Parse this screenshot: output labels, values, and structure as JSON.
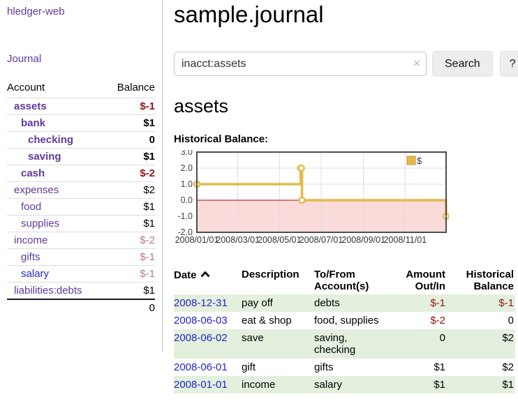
{
  "app": {
    "title": "hledger-web"
  },
  "nav": {
    "journal_label": "Journal"
  },
  "sidebar": {
    "columns": {
      "account": "Account",
      "balance": "Balance"
    },
    "accounts": [
      {
        "name": "assets",
        "indent": 0,
        "bold": true,
        "balance": "$-1",
        "balance_style": "neg"
      },
      {
        "name": "bank",
        "indent": 1,
        "bold": true,
        "balance": "$1",
        "balance_style": "pos"
      },
      {
        "name": "checking",
        "indent": 2,
        "bold": true,
        "balance": "0",
        "balance_style": "pos"
      },
      {
        "name": "saving",
        "indent": 2,
        "bold": true,
        "balance": "$1",
        "balance_style": "pos"
      },
      {
        "name": "cash",
        "indent": 1,
        "bold": true,
        "balance": "$-2",
        "balance_style": "neg"
      },
      {
        "name": "expenses",
        "indent": 0,
        "bold": false,
        "balance": "$2",
        "balance_style": "pos"
      },
      {
        "name": "food",
        "indent": 1,
        "bold": false,
        "balance": "$1",
        "balance_style": "pos"
      },
      {
        "name": "supplies",
        "indent": 1,
        "bold": false,
        "balance": "$1",
        "balance_style": "pos"
      },
      {
        "name": "income",
        "indent": 0,
        "bold": false,
        "balance": "$-2",
        "balance_style": "negmuted"
      },
      {
        "name": "gifts",
        "indent": 1,
        "bold": false,
        "balance": "$-1",
        "balance_style": "negmuted"
      },
      {
        "name": "salary",
        "indent": 1,
        "bold": false,
        "link_style": "unvisited",
        "balance": "$-1",
        "balance_style": "negmuted"
      },
      {
        "name": "liabilities:debts",
        "indent": 0,
        "bold": false,
        "balance": "$1",
        "balance_style": "pos"
      }
    ],
    "total": "0"
  },
  "header": {
    "title": "sample.journal"
  },
  "search": {
    "value": "inacct:assets",
    "clear_icon_glyph": "×",
    "button_label": "Search",
    "help_label": "?"
  },
  "account_page": {
    "heading": "assets",
    "chart_title": "Historical Balance:"
  },
  "chart_data": {
    "type": "line",
    "title": "Historical Balance:",
    "step": true,
    "series": [
      {
        "name": "$",
        "color": "#e4ba4a",
        "points": [
          [
            "2008-01-01",
            1
          ],
          [
            "2008-06-01",
            2
          ],
          [
            "2008-06-02",
            2
          ],
          [
            "2008-06-03",
            0
          ],
          [
            "2008-12-31",
            -1
          ]
        ]
      }
    ],
    "x_ticks": [
      "2008/01/01",
      "2008/03/01",
      "2008/05/01",
      "2008/07/01",
      "2008/09/01",
      "2008/11/01"
    ],
    "y_ticks": [
      3.0,
      2.0,
      1.0,
      0.0,
      -1.0,
      -2.0
    ],
    "xlim": [
      "2008-01-01",
      "2008-12-31"
    ],
    "ylim": [
      -2,
      3
    ],
    "grid": true,
    "legend": {
      "label": "$",
      "position": "top-right"
    },
    "negative_region_color": "#fbdada",
    "zero_line_color": "#991111",
    "border_color": "#4d4d4d"
  },
  "register": {
    "columns": {
      "date": "Date",
      "description": "Description",
      "accounts": "To/From Account(s)",
      "amount": "Amount Out/In",
      "balance": "Historical Balance"
    },
    "sort_icon": "chevron-up-icon",
    "rows": [
      {
        "date": "2008-12-31",
        "description": "pay off",
        "accounts": "debts",
        "amount": "$-1",
        "amount_neg": true,
        "balance": "$-1",
        "balance_neg": true
      },
      {
        "date": "2008-06-03",
        "description": "eat & shop",
        "accounts": "food, supplies",
        "amount": "$-2",
        "amount_neg": true,
        "balance": "0",
        "balance_neg": false
      },
      {
        "date": "2008-06-02",
        "description": "save",
        "accounts": "saving, checking",
        "amount": "0",
        "amount_neg": false,
        "balance": "$2",
        "balance_neg": false
      },
      {
        "date": "2008-06-01",
        "description": "gift",
        "accounts": "gifts",
        "amount": "$1",
        "amount_neg": false,
        "balance": "$2",
        "balance_neg": false
      },
      {
        "date": "2008-01-01",
        "description": "income",
        "accounts": "salary",
        "amount": "$1",
        "amount_neg": false,
        "balance": "$1",
        "balance_neg": false
      }
    ]
  }
}
